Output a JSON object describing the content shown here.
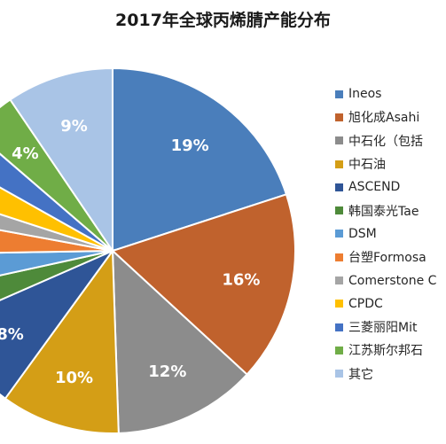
{
  "chart_data": {
    "type": "pie",
    "title": "2017年全球丙烯腈产能分布",
    "legend_position": "right",
    "slices": [
      {
        "name": "Ineos",
        "value": 19,
        "label": "19%",
        "color": "#4a7ebb"
      },
      {
        "name": "旭化成Asahi",
        "value": 16,
        "label": "16%",
        "color": "#c0622d"
      },
      {
        "name": "中石化（包括",
        "value": 12,
        "label": "12%",
        "color": "#8c8c8c"
      },
      {
        "name": "中石油",
        "value": 10,
        "label": "10%",
        "color": "#d49e16"
      },
      {
        "name": "ASCEND",
        "value": 8,
        "label": "8%",
        "color": "#2f5597"
      },
      {
        "name": "韩国泰光Tae",
        "value": 3,
        "label": "",
        "color": "#4e8a3a"
      },
      {
        "name": "DSM",
        "value": 3,
        "label": "",
        "color": "#5b9bd5"
      },
      {
        "name": "台塑Formosa",
        "value": 3,
        "label": "",
        "color": "#ed7d31"
      },
      {
        "name": "Comerstone C",
        "value": 2,
        "label": "",
        "color": "#a5a5a5"
      },
      {
        "name": "CPDC",
        "value": 3,
        "label": "",
        "color": "#ffc000"
      },
      {
        "name": "三菱丽阳Mit",
        "value": 3,
        "label": "",
        "color": "#4472c4"
      },
      {
        "name": "江苏斯尔邦石",
        "value": 4,
        "label": "4%",
        "color": "#70ad47"
      },
      {
        "name": "其它",
        "value": 9,
        "label": "9%",
        "color": "#a9c4e6"
      }
    ]
  }
}
